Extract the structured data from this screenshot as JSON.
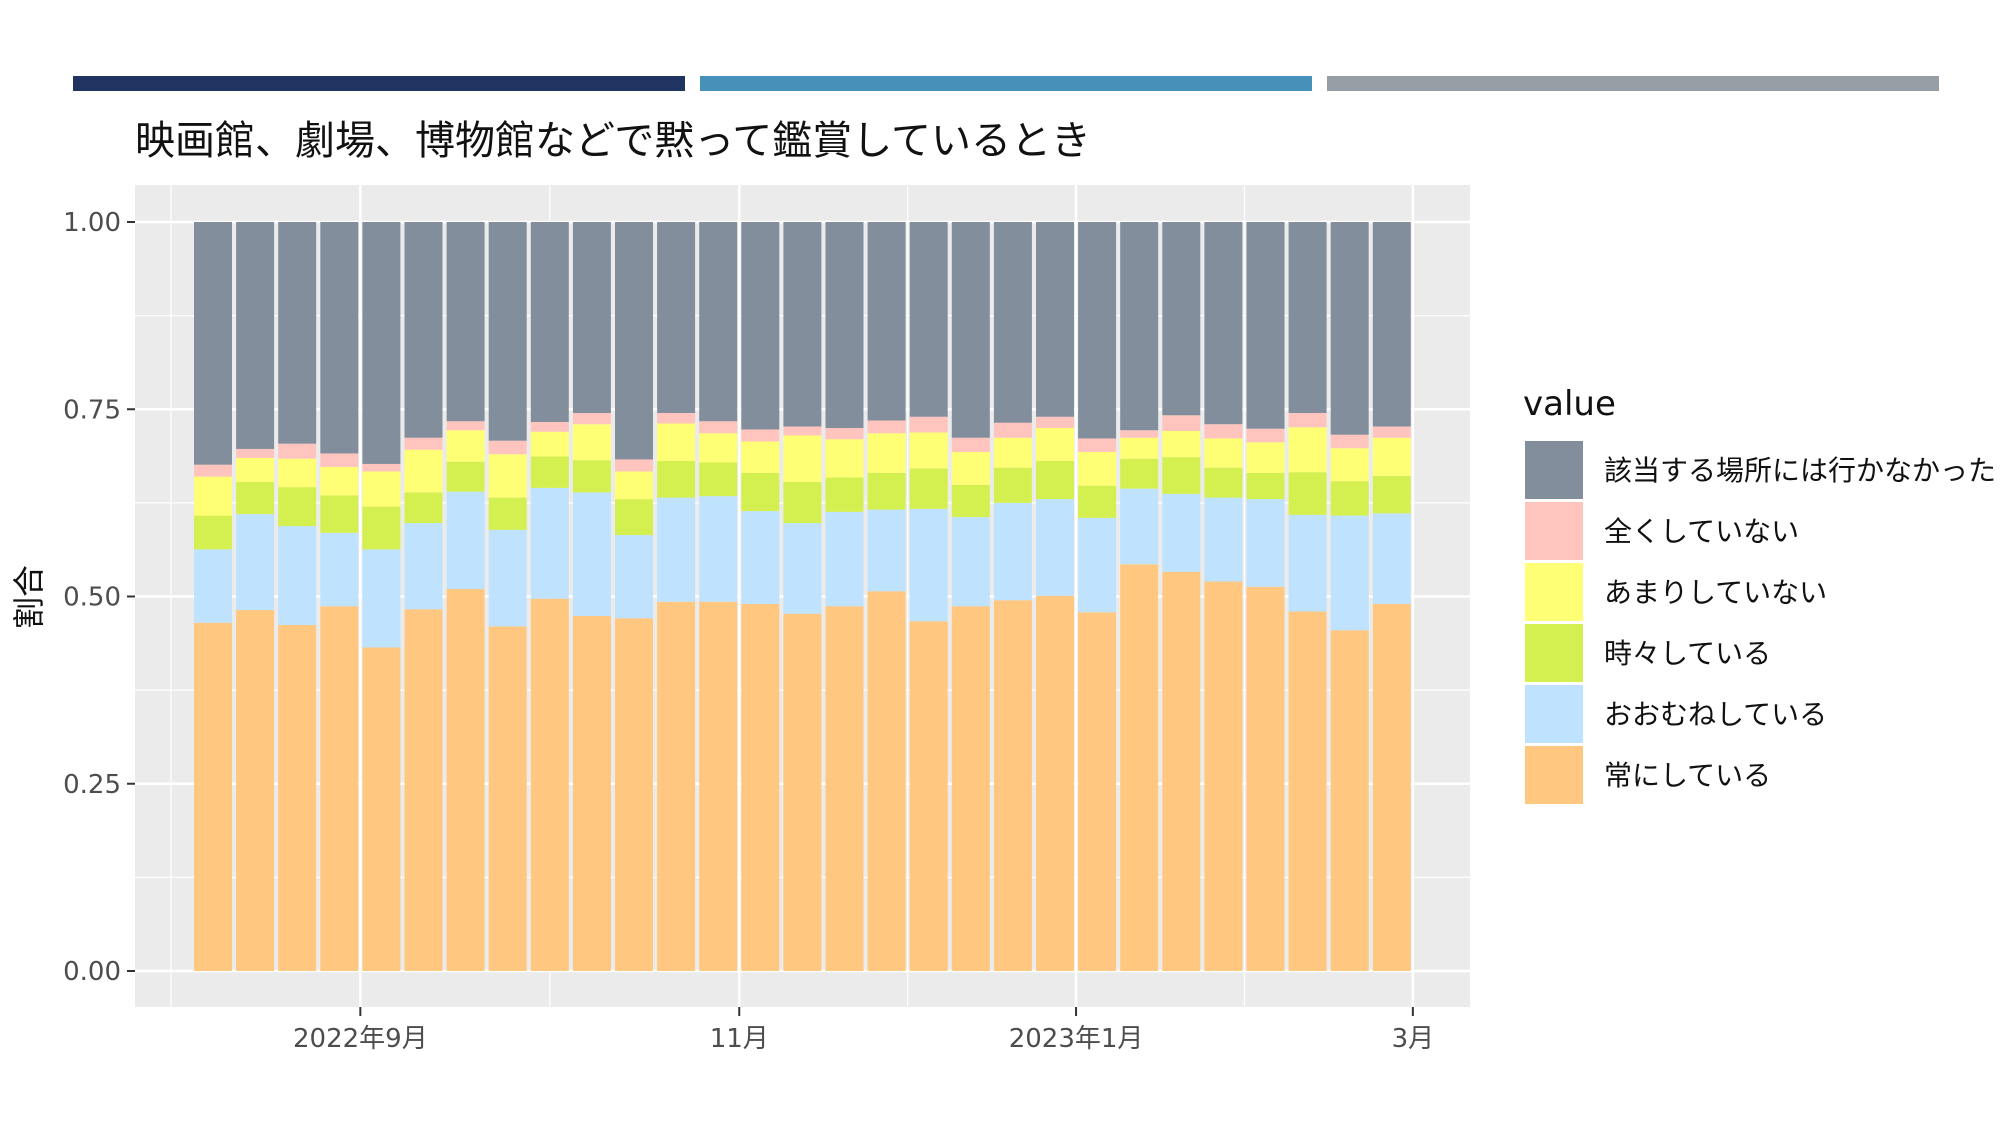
{
  "header": {
    "bars": [
      {
        "color": "#1f3461"
      },
      {
        "color": "#4591b9"
      },
      {
        "color": "#969fa6"
      }
    ],
    "title": "映画館、劇場、博物館などで黙って鑑賞しているとき"
  },
  "chart_data": {
    "type": "bar",
    "stacked": true,
    "title": "映画館、劇場、博物館などで黙って鑑賞しているとき",
    "xlabel": "",
    "ylabel": "割合",
    "ylim": [
      0,
      1
    ],
    "yticks": [
      "0.00",
      "0.25",
      "0.50",
      "0.75",
      "1.00"
    ],
    "xticks": [
      "2022年9月",
      "11月",
      "2023年1月",
      "3月"
    ],
    "xtick_positions": [
      3.5,
      12.5,
      20.5,
      28.5
    ],
    "grid": true,
    "panel_background": "#ebebeb",
    "legend": {
      "title": "value",
      "placement": "right"
    },
    "series": [
      {
        "name": "常にしている",
        "color": "#ffc780",
        "values": [
          0.465,
          0.482,
          0.462,
          0.487,
          0.432,
          0.483,
          0.51,
          0.46,
          0.497,
          0.474,
          0.471,
          0.493,
          0.493,
          0.49,
          0.477,
          0.487,
          0.507,
          0.467,
          0.487,
          0.495,
          0.501,
          0.479,
          0.543,
          0.533,
          0.52,
          0.513,
          0.48,
          0.455,
          0.49
        ]
      },
      {
        "name": "おおむねしている",
        "color": "#bfe3ff",
        "values": [
          0.098,
          0.128,
          0.132,
          0.098,
          0.131,
          0.115,
          0.13,
          0.129,
          0.148,
          0.165,
          0.111,
          0.139,
          0.141,
          0.124,
          0.121,
          0.126,
          0.109,
          0.15,
          0.119,
          0.13,
          0.129,
          0.126,
          0.101,
          0.104,
          0.112,
          0.117,
          0.129,
          0.153,
          0.121
        ]
      },
      {
        "name": "時々している",
        "color": "#d4f050",
        "values": [
          0.045,
          0.043,
          0.052,
          0.05,
          0.057,
          0.041,
          0.04,
          0.043,
          0.042,
          0.043,
          0.048,
          0.049,
          0.045,
          0.051,
          0.055,
          0.046,
          0.049,
          0.054,
          0.043,
          0.047,
          0.051,
          0.043,
          0.04,
          0.049,
          0.04,
          0.035,
          0.057,
          0.046,
          0.05
        ]
      },
      {
        "name": "あまりしていない",
        "color": "#ffff75",
        "values": [
          0.052,
          0.032,
          0.038,
          0.038,
          0.047,
          0.057,
          0.042,
          0.058,
          0.033,
          0.048,
          0.037,
          0.05,
          0.039,
          0.042,
          0.062,
          0.051,
          0.053,
          0.048,
          0.044,
          0.04,
          0.044,
          0.045,
          0.028,
          0.035,
          0.039,
          0.041,
          0.06,
          0.044,
          0.051
        ]
      },
      {
        "name": "全くしていない",
        "color": "#ffc4be",
        "values": [
          0.016,
          0.012,
          0.02,
          0.018,
          0.01,
          0.016,
          0.012,
          0.018,
          0.013,
          0.015,
          0.016,
          0.014,
          0.016,
          0.016,
          0.012,
          0.015,
          0.017,
          0.021,
          0.019,
          0.02,
          0.015,
          0.018,
          0.01,
          0.021,
          0.019,
          0.018,
          0.019,
          0.018,
          0.015
        ]
      },
      {
        "name": "該当する場所には行かなかった",
        "color": "#828e9b",
        "values": [
          0.324,
          0.303,
          0.296,
          0.309,
          0.323,
          0.288,
          0.266,
          0.292,
          0.267,
          0.255,
          0.317,
          0.255,
          0.266,
          0.277,
          0.273,
          0.275,
          0.265,
          0.26,
          0.288,
          0.268,
          0.26,
          0.289,
          0.278,
          0.258,
          0.27,
          0.276,
          0.255,
          0.284,
          0.273
        ]
      }
    ]
  }
}
